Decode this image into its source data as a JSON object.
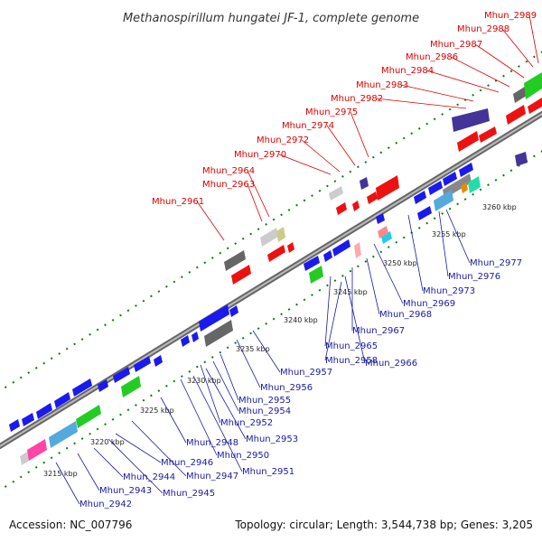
{
  "title": "Methanospirillum hungatei JF-1, complete genome",
  "accession": "Accession: NC_007796",
  "topology_info": "Topology: circular; Length: 3,544,738 bp; Genes: 3,205",
  "ticks": [
    "3215 kbp",
    "3220 kbp",
    "3225 kbp",
    "3230 kbp",
    "3235 kbp",
    "3240 kbp",
    "3245 kbp",
    "3250 kbp",
    "3255 kbp",
    "3260 kbp"
  ],
  "labels_top": [
    "Mhun_2961",
    "Mhun_2963",
    "Mhun_2964",
    "Mhun_2970",
    "Mhun_2972",
    "Mhun_2974",
    "Mhun_2975",
    "Mhun_2982",
    "Mhun_2983",
    "Mhun_2984",
    "Mhun_2986",
    "Mhun_2987",
    "Mhun_2988",
    "Mhun_2989"
  ],
  "labels_bottom": [
    "Mhun_2942",
    "Mhun_2943",
    "Mhun_2944",
    "Mhun_2945",
    "Mhun_2946",
    "Mhun_2947",
    "Mhun_2948",
    "Mhun_2950",
    "Mhun_2951",
    "Mhun_2952",
    "Mhun_2953",
    "Mhun_2954",
    "Mhun_2955",
    "Mhun_2956",
    "Mhun_2957",
    "Mhun_2958",
    "Mhun_2965",
    "Mhun_2966",
    "Mhun_2967",
    "Mhun_2968",
    "Mhun_2969",
    "Mhun_2973",
    "Mhun_2976",
    "Mhun_2977"
  ],
  "colors": {
    "forward_label": "#dd0000",
    "reverse_label": "#1a1aa0",
    "backbone": "#888888",
    "forward_gene": "#ee1111",
    "reverse_gene": "#1a1aee",
    "pseudo_gene": "#666666",
    "rna_gene": "#22cc22",
    "dots": "#117711"
  }
}
